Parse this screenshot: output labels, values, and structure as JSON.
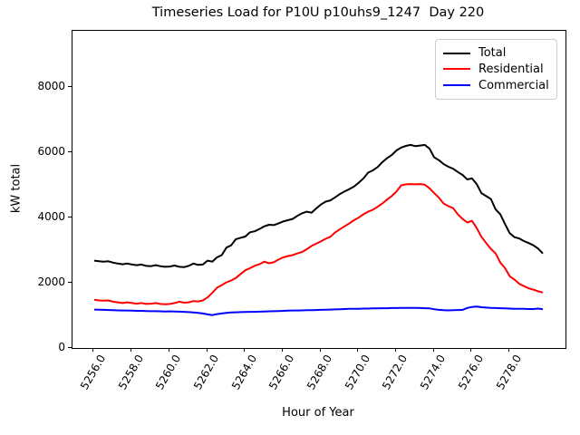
{
  "figure": {
    "title": "Timeseries Load for P10U p10uhs9_1247  Day 220",
    "xlabel": "Hour of Year",
    "ylabel": "kW total"
  },
  "chart_data": {
    "type": "line",
    "title": "Timeseries Load for P10U p10uhs9_1247  Day 220",
    "xlabel": "Hour of Year",
    "ylabel": "kW total",
    "xlim": [
      5254.85,
      5280.95
    ],
    "ylim": [
      0,
      9730
    ],
    "grid": false,
    "legend_position": "upper right",
    "x_tick_labels": [
      "5256.0",
      "5258.0",
      "5260.0",
      "5262.0",
      "5264.0",
      "5266.0",
      "5268.0",
      "5270.0",
      "5272.0",
      "5274.0",
      "5276.0",
      "5278.0"
    ],
    "x_tick_values": [
      5256,
      5258,
      5260,
      5262,
      5264,
      5266,
      5268,
      5270,
      5272,
      5274,
      5276,
      5278
    ],
    "y_tick_labels": [
      "0",
      "2000",
      "4000",
      "6000",
      "8000"
    ],
    "y_tick_values": [
      0,
      2000,
      4000,
      6000,
      8000
    ],
    "x": [
      5256.0,
      5256.25,
      5256.5,
      5256.75,
      5257.0,
      5257.25,
      5257.5,
      5257.75,
      5258.0,
      5258.25,
      5258.5,
      5258.75,
      5259.0,
      5259.25,
      5259.5,
      5259.75,
      5260.0,
      5260.25,
      5260.5,
      5260.75,
      5261.0,
      5261.25,
      5261.5,
      5261.75,
      5262.0,
      5262.25,
      5262.5,
      5262.75,
      5263.0,
      5263.25,
      5263.5,
      5263.75,
      5264.0,
      5264.25,
      5264.5,
      5264.75,
      5265.0,
      5265.25,
      5265.5,
      5265.75,
      5266.0,
      5266.25,
      5266.5,
      5266.75,
      5267.0,
      5267.25,
      5267.5,
      5267.75,
      5268.0,
      5268.25,
      5268.5,
      5268.75,
      5269.0,
      5269.25,
      5269.5,
      5269.75,
      5270.0,
      5270.25,
      5270.5,
      5270.75,
      5271.0,
      5271.25,
      5271.5,
      5271.75,
      5272.0,
      5272.25,
      5272.5,
      5272.75,
      5273.0,
      5273.25,
      5273.5,
      5273.75,
      5274.0,
      5274.25,
      5274.5,
      5274.75,
      5275.0,
      5275.25,
      5275.5,
      5275.75,
      5276.0,
      5276.25,
      5276.5,
      5276.75,
      5277.0,
      5277.25,
      5277.5,
      5277.75,
      5278.0,
      5278.25,
      5278.5,
      5278.75,
      5279.0,
      5279.25,
      5279.5,
      5279.75
    ],
    "series": [
      {
        "name": "Total",
        "color": "#000000",
        "values": [
          2680,
          2660,
          2650,
          2660,
          2620,
          2590,
          2570,
          2590,
          2560,
          2540,
          2560,
          2520,
          2510,
          2540,
          2510,
          2490,
          2500,
          2530,
          2490,
          2480,
          2520,
          2590,
          2550,
          2560,
          2680,
          2650,
          2780,
          2850,
          3080,
          3150,
          3340,
          3380,
          3420,
          3550,
          3580,
          3650,
          3730,
          3780,
          3770,
          3820,
          3880,
          3920,
          3960,
          4050,
          4130,
          4180,
          4150,
          4280,
          4400,
          4490,
          4530,
          4620,
          4720,
          4800,
          4870,
          4950,
          5070,
          5200,
          5380,
          5450,
          5550,
          5700,
          5820,
          5920,
          6060,
          6150,
          6200,
          6230,
          6190,
          6210,
          6230,
          6120,
          5850,
          5760,
          5640,
          5560,
          5500,
          5400,
          5310,
          5170,
          5200,
          5030,
          4750,
          4660,
          4570,
          4250,
          4100,
          3800,
          3520,
          3400,
          3360,
          3280,
          3220,
          3150,
          3050,
          2900
        ]
      },
      {
        "name": "Residential",
        "color": "#ff0000",
        "values": [
          1480,
          1460,
          1450,
          1460,
          1420,
          1400,
          1380,
          1400,
          1380,
          1360,
          1380,
          1350,
          1360,
          1380,
          1350,
          1340,
          1350,
          1380,
          1420,
          1390,
          1400,
          1440,
          1430,
          1460,
          1550,
          1690,
          1850,
          1930,
          2015,
          2070,
          2150,
          2270,
          2385,
          2450,
          2525,
          2570,
          2650,
          2600,
          2630,
          2710,
          2780,
          2820,
          2850,
          2900,
          2945,
          3030,
          3130,
          3200,
          3270,
          3350,
          3410,
          3545,
          3640,
          3730,
          3820,
          3920,
          4000,
          4100,
          4180,
          4240,
          4330,
          4430,
          4550,
          4660,
          4800,
          4990,
          5020,
          5030,
          5020,
          5030,
          5010,
          4900,
          4750,
          4610,
          4430,
          4350,
          4290,
          4100,
          3960,
          3850,
          3900,
          3680,
          3410,
          3220,
          3040,
          2900,
          2620,
          2450,
          2200,
          2100,
          1970,
          1900,
          1830,
          1790,
          1740,
          1700
        ]
      },
      {
        "name": "Commercial",
        "color": "#0000ff",
        "values": [
          1180,
          1175,
          1170,
          1165,
          1160,
          1155,
          1150,
          1150,
          1145,
          1140,
          1140,
          1135,
          1130,
          1130,
          1125,
          1120,
          1125,
          1120,
          1115,
          1110,
          1100,
          1090,
          1080,
          1060,
          1030,
          1010,
          1040,
          1060,
          1080,
          1090,
          1095,
          1100,
          1105,
          1110,
          1110,
          1115,
          1120,
          1125,
          1130,
          1135,
          1140,
          1145,
          1150,
          1150,
          1155,
          1160,
          1160,
          1165,
          1170,
          1175,
          1180,
          1185,
          1190,
          1195,
          1200,
          1200,
          1205,
          1210,
          1210,
          1215,
          1215,
          1220,
          1220,
          1225,
          1225,
          1230,
          1230,
          1230,
          1230,
          1225,
          1220,
          1215,
          1190,
          1170,
          1160,
          1155,
          1160,
          1165,
          1170,
          1230,
          1260,
          1270,
          1250,
          1240,
          1230,
          1225,
          1220,
          1215,
          1210,
          1205,
          1200,
          1200,
          1195,
          1195,
          1210,
          1190
        ]
      }
    ],
    "legend": {
      "entries": [
        {
          "label": "Total",
          "color": "#000000"
        },
        {
          "label": "Residential",
          "color": "#ff0000"
        },
        {
          "label": "Commercial",
          "color": "#0000ff"
        }
      ]
    }
  }
}
